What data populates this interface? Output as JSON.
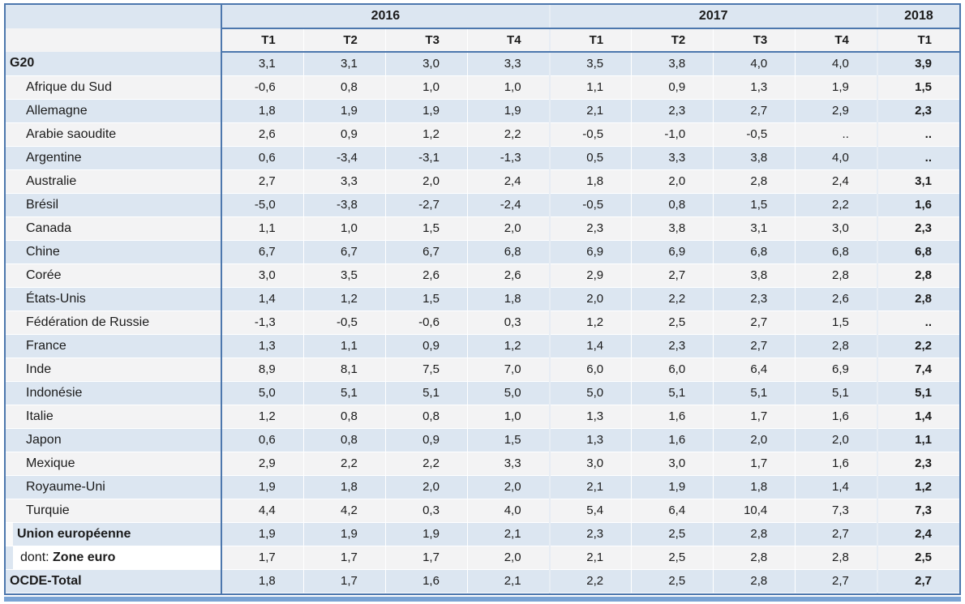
{
  "colors": {
    "border_blue": "#4c77ad",
    "band_blue": "#dce6f1",
    "band_white": "#f3f3f4",
    "bottom_bar": "#79a3d4",
    "text": "#1b1b1b"
  },
  "table": {
    "year_groups": [
      {
        "label": "2016",
        "span": 4
      },
      {
        "label": "2017",
        "span": 4
      },
      {
        "label": "2018",
        "span": 1
      }
    ],
    "quarter_headers": [
      "T1",
      "T2",
      "T3",
      "T4",
      "T1",
      "T2",
      "T3",
      "T4",
      "T1"
    ],
    "missing_value_symbol": "..",
    "rows": [
      {
        "label": "G20",
        "style": "aggregate",
        "values": [
          "3,1",
          "3,1",
          "3,0",
          "3,3",
          "3,5",
          "3,8",
          "4,0",
          "4,0",
          "3,9"
        ]
      },
      {
        "label": "Afrique du Sud",
        "style": "country",
        "values": [
          "-0,6",
          "0,8",
          "1,0",
          "1,0",
          "1,1",
          "0,9",
          "1,3",
          "1,9",
          "1,5"
        ]
      },
      {
        "label": "Allemagne",
        "style": "country",
        "values": [
          "1,8",
          "1,9",
          "1,9",
          "1,9",
          "2,1",
          "2,3",
          "2,7",
          "2,9",
          "2,3"
        ]
      },
      {
        "label": "Arabie saoudite",
        "style": "country",
        "values": [
          "2,6",
          "0,9",
          "1,2",
          "2,2",
          "-0,5",
          "-1,0",
          "-0,5",
          "..",
          ".."
        ]
      },
      {
        "label": "Argentine",
        "style": "country",
        "values": [
          "0,6",
          "-3,4",
          "-3,1",
          "-1,3",
          "0,5",
          "3,3",
          "3,8",
          "4,0",
          ".."
        ]
      },
      {
        "label": "Australie",
        "style": "country",
        "values": [
          "2,7",
          "3,3",
          "2,0",
          "2,4",
          "1,8",
          "2,0",
          "2,8",
          "2,4",
          "3,1"
        ]
      },
      {
        "label": "Brésil",
        "style": "country",
        "values": [
          "-5,0",
          "-3,8",
          "-2,7",
          "-2,4",
          "-0,5",
          "0,8",
          "1,5",
          "2,2",
          "1,6"
        ]
      },
      {
        "label": "Canada",
        "style": "country",
        "values": [
          "1,1",
          "1,0",
          "1,5",
          "2,0",
          "2,3",
          "3,8",
          "3,1",
          "3,0",
          "2,3"
        ]
      },
      {
        "label": "Chine",
        "style": "country",
        "values": [
          "6,7",
          "6,7",
          "6,7",
          "6,8",
          "6,9",
          "6,9",
          "6,8",
          "6,8",
          "6,8"
        ]
      },
      {
        "label": "Corée",
        "style": "country",
        "values": [
          "3,0",
          "3,5",
          "2,6",
          "2,6",
          "2,9",
          "2,7",
          "3,8",
          "2,8",
          "2,8"
        ]
      },
      {
        "label": "États-Unis",
        "style": "country",
        "values": [
          "1,4",
          "1,2",
          "1,5",
          "1,8",
          "2,0",
          "2,2",
          "2,3",
          "2,6",
          "2,8"
        ]
      },
      {
        "label": "Fédération de Russie",
        "style": "country",
        "values": [
          "-1,3",
          "-0,5",
          "-0,6",
          "0,3",
          "1,2",
          "2,5",
          "2,7",
          "1,5",
          ".."
        ]
      },
      {
        "label": "France",
        "style": "country",
        "values": [
          "1,3",
          "1,1",
          "0,9",
          "1,2",
          "1,4",
          "2,3",
          "2,7",
          "2,8",
          "2,2"
        ]
      },
      {
        "label": "Inde",
        "style": "country",
        "values": [
          "8,9",
          "8,1",
          "7,5",
          "7,0",
          "6,0",
          "6,0",
          "6,4",
          "6,9",
          "7,4"
        ]
      },
      {
        "label": "Indonésie",
        "style": "country",
        "values": [
          "5,0",
          "5,1",
          "5,1",
          "5,0",
          "5,0",
          "5,1",
          "5,1",
          "5,1",
          "5,1"
        ]
      },
      {
        "label": "Italie",
        "style": "country",
        "values": [
          "1,2",
          "0,8",
          "0,8",
          "1,0",
          "1,3",
          "1,6",
          "1,7",
          "1,6",
          "1,4"
        ]
      },
      {
        "label": "Japon",
        "style": "country",
        "values": [
          "0,6",
          "0,8",
          "0,9",
          "1,5",
          "1,3",
          "1,6",
          "2,0",
          "2,0",
          "1,1"
        ]
      },
      {
        "label": "Mexique",
        "style": "country",
        "values": [
          "2,9",
          "2,2",
          "2,2",
          "3,3",
          "3,0",
          "3,0",
          "1,7",
          "1,6",
          "2,3"
        ]
      },
      {
        "label": "Royaume-Uni",
        "style": "country",
        "values": [
          "1,9",
          "1,8",
          "2,0",
          "2,0",
          "2,1",
          "1,9",
          "1,8",
          "1,4",
          "1,2"
        ]
      },
      {
        "label": "Turquie",
        "style": "country",
        "values": [
          "4,4",
          "4,2",
          "0,3",
          "4,0",
          "5,4",
          "6,4",
          "10,4",
          "7,3",
          "7,3"
        ]
      },
      {
        "label": "Union européenne",
        "style": "union",
        "values": [
          "1,9",
          "1,9",
          "1,9",
          "2,1",
          "2,3",
          "2,5",
          "2,8",
          "2,7",
          "2,4"
        ]
      },
      {
        "label": "Zone euro",
        "prefix": "dont: ",
        "style": "dont",
        "values": [
          "1,7",
          "1,7",
          "1,7",
          "2,0",
          "2,1",
          "2,5",
          "2,8",
          "2,8",
          "2,5"
        ]
      },
      {
        "label": "OCDE-Total",
        "style": "aggregate",
        "values": [
          "1,8",
          "1,7",
          "1,6",
          "2,1",
          "2,2",
          "2,5",
          "2,8",
          "2,7",
          "2,7"
        ]
      }
    ]
  }
}
